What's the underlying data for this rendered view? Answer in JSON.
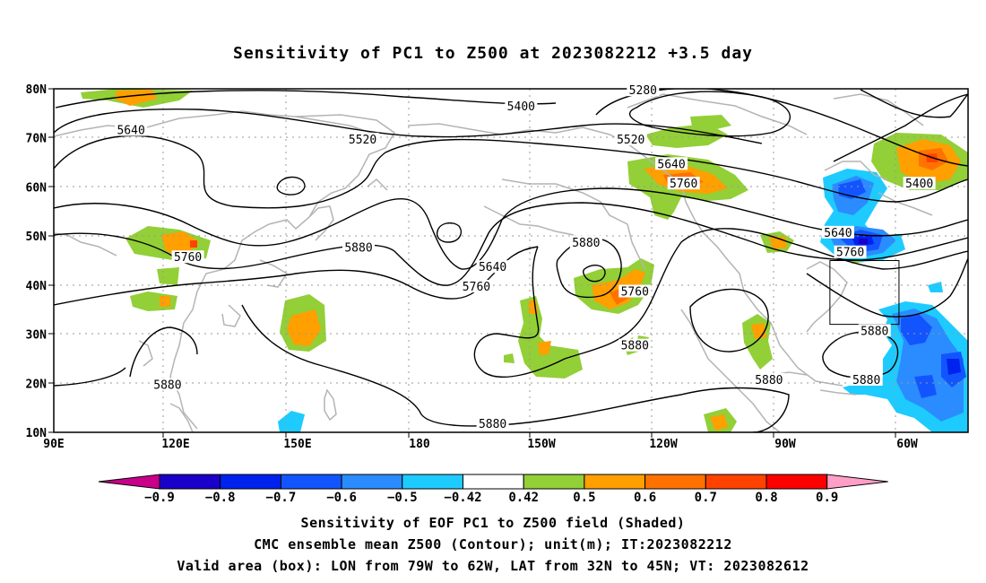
{
  "title": "Sensitivity of PC1 to Z500 at 2023082212 +3.5 day",
  "map": {
    "lon_ticks": [
      {
        "label": "90E",
        "lon": 90
      },
      {
        "label": "120E",
        "lon": 120
      },
      {
        "label": "150E",
        "lon": 150
      },
      {
        "label": "180",
        "lon": 180
      },
      {
        "label": "150W",
        "lon": 210
      },
      {
        "label": "120W",
        "lon": 240
      },
      {
        "label": "90W",
        "lon": 270
      },
      {
        "label": "60W",
        "lon": 300
      }
    ],
    "lat_ticks": [
      {
        "label": "80N",
        "lat": 80
      },
      {
        "label": "70N",
        "lat": 70
      },
      {
        "label": "60N",
        "lat": 60
      },
      {
        "label": "50N",
        "lat": 50
      },
      {
        "label": "40N",
        "lat": 40
      },
      {
        "label": "30N",
        "lat": 30
      },
      {
        "label": "20N",
        "lat": 20
      },
      {
        "label": "10N",
        "lat": 10
      }
    ],
    "lon_range": [
      90,
      315
    ],
    "lat_range": [
      10,
      80
    ],
    "grid": "dotted",
    "contour_labels": [
      {
        "text": "5280",
        "lon": 235,
        "lat": 79.6
      },
      {
        "text": "5400",
        "lon": 205,
        "lat": 76.3
      },
      {
        "text": "5640",
        "lon": 109,
        "lat": 71.5
      },
      {
        "text": "5520",
        "lon": 166,
        "lat": 69.6
      },
      {
        "text": "5520",
        "lon": 232,
        "lat": 69.6
      },
      {
        "text": "5640",
        "lon": 242,
        "lat": 64.6
      },
      {
        "text": "5760",
        "lon": 245,
        "lat": 60.6
      },
      {
        "text": "5400",
        "lon": 303,
        "lat": 60.6
      },
      {
        "text": "5880",
        "lon": 221,
        "lat": 48.6
      },
      {
        "text": "5640",
        "lon": 283,
        "lat": 50.6
      },
      {
        "text": "5760",
        "lon": 123,
        "lat": 45.6
      },
      {
        "text": "5880",
        "lon": 165,
        "lat": 47.6
      },
      {
        "text": "5640",
        "lon": 198,
        "lat": 43.6
      },
      {
        "text": "5760",
        "lon": 194,
        "lat": 39.6
      },
      {
        "text": "5760",
        "lon": 286,
        "lat": 46.6
      },
      {
        "text": "5760",
        "lon": 233,
        "lat": 38.6
      },
      {
        "text": "5880",
        "lon": 292,
        "lat": 30.6
      },
      {
        "text": "5880",
        "lon": 233,
        "lat": 27.6
      },
      {
        "text": "5880",
        "lon": 118,
        "lat": 19.6
      },
      {
        "text": "5880",
        "lon": 266,
        "lat": 20.6
      },
      {
        "text": "5880",
        "lon": 290,
        "lat": 20.6
      },
      {
        "text": "5880",
        "lon": 198,
        "lat": 11.6
      }
    ],
    "valid_box": {
      "lon_min": 281,
      "lon_max": 298,
      "lat_min": 32,
      "lat_max": 45
    }
  },
  "colorbar": {
    "labels": [
      "-0.9",
      "-0.8",
      "-0.7",
      "-0.6",
      "-0.5",
      "-0.42",
      "0.42",
      "0.5",
      "0.6",
      "0.7",
      "0.8",
      "0.9"
    ],
    "colors": [
      "#1a00c8",
      "#0022ee",
      "#1255ff",
      "#2b8cff",
      "#1ecbff",
      "#ffffff",
      "#93cf37",
      "#ff9f00",
      "#ff7200",
      "#ff4200",
      "#ff0000"
    ],
    "low_extend_color": "#c8008a",
    "high_extend_color": "#ff9fc7"
  },
  "captions": {
    "line1": "Sensitivity of EOF PC1 to Z500 field (Shaded)",
    "line2": "CMC ensemble mean Z500 (Contour); unit(m); IT:2023082212",
    "line3": "Valid area (box): LON from 79W to 62W, LAT from 32N to 45N; VT: 2023082612"
  }
}
